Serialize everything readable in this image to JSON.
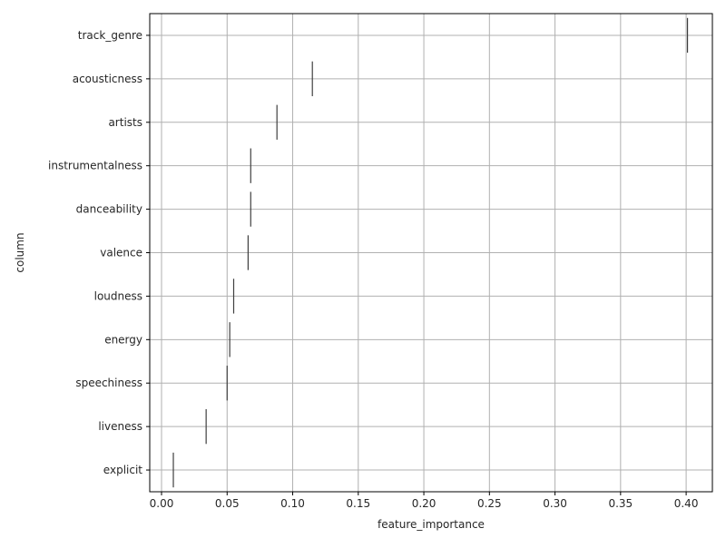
{
  "chart_data": {
    "type": "scatter",
    "title": "",
    "xlabel": "feature_importance",
    "ylabel": "column",
    "xlim": [
      -0.009,
      0.42
    ],
    "xticks": [
      0.0,
      0.05,
      0.1,
      0.15,
      0.2,
      0.25,
      0.3,
      0.35,
      0.4
    ],
    "xtick_labels": [
      "0.00",
      "0.05",
      "0.10",
      "0.15",
      "0.20",
      "0.25",
      "0.30",
      "0.35",
      "0.40"
    ],
    "grid": true,
    "categories": [
      "track_genre",
      "acousticness",
      "artists",
      "instrumentalness",
      "danceability",
      "valence",
      "loudness",
      "energy",
      "speechiness",
      "liveness",
      "explicit"
    ],
    "values": [
      0.401,
      0.115,
      0.088,
      0.068,
      0.068,
      0.066,
      0.055,
      0.052,
      0.05,
      0.034,
      0.009
    ],
    "mark_color": "#3f3f3f"
  }
}
